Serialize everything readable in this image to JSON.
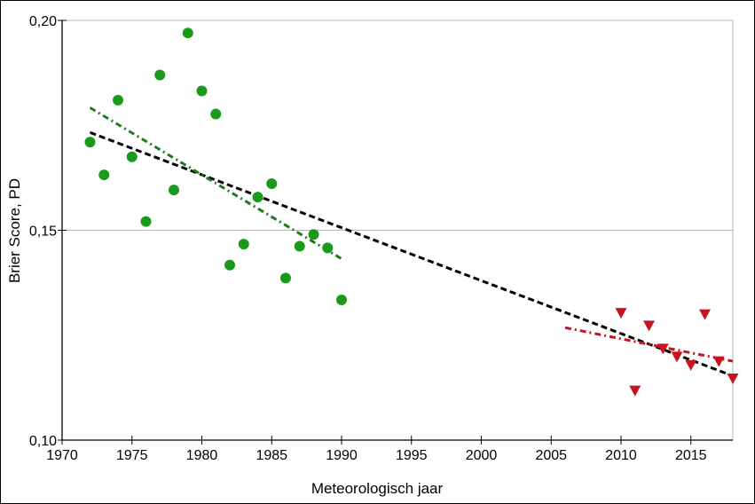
{
  "chart_data": {
    "type": "scatter",
    "title": "",
    "xlabel": "Meteorologisch jaar",
    "ylabel": "Brier Score, PD",
    "xlim": [
      1970,
      2018
    ],
    "ylim": [
      0.1,
      0.2
    ],
    "x_ticks": [
      {
        "value": 1970,
        "label": "1970"
      },
      {
        "value": 1975,
        "label": "1975"
      },
      {
        "value": 1980,
        "label": "1980"
      },
      {
        "value": 1985,
        "label": "1985"
      },
      {
        "value": 1990,
        "label": "1990"
      },
      {
        "value": 1995,
        "label": "1995"
      },
      {
        "value": 2000,
        "label": "2000"
      },
      {
        "value": 2005,
        "label": "2005"
      },
      {
        "value": 2010,
        "label": "2010"
      },
      {
        "value": 2015,
        "label": "2015"
      }
    ],
    "y_ticks": [
      {
        "value": 0.1,
        "label": "0,10"
      },
      {
        "value": 0.15,
        "label": "0,15"
      },
      {
        "value": 0.2,
        "label": "0,20"
      }
    ],
    "grid": "horizontal at 0.15 and 0.20",
    "legend": "none",
    "series": [
      {
        "marker": "circle",
        "color": "#1a9a1a",
        "x": [
          1972,
          1973,
          1974,
          1975,
          1976,
          1977,
          1978,
          1979,
          1980,
          1981,
          1982,
          1983,
          1984,
          1985,
          1986,
          1987,
          1988,
          1989,
          1990
        ],
        "y": [
          0.171,
          0.1632,
          0.181,
          0.1675,
          0.1521,
          0.187,
          0.1596,
          0.197,
          0.1832,
          0.1777,
          0.1417,
          0.1467,
          0.1579,
          0.1611,
          0.1386,
          0.1462,
          0.149,
          0.1458,
          0.1334
        ]
      },
      {
        "marker": "triangle-down",
        "color": "#c8141e",
        "x": [
          2010,
          2011,
          2012,
          2013,
          2014,
          2015,
          2016,
          2017,
          2018
        ],
        "y": [
          0.1303,
          0.1118,
          0.1273,
          0.1218,
          0.1199,
          0.1179,
          0.13,
          0.1188,
          0.1147
        ]
      }
    ],
    "trendlines": [
      {
        "style": "dashed",
        "color": "#000000",
        "x": [
          1972,
          2018
        ],
        "y": [
          0.1733,
          0.1153
        ]
      },
      {
        "style": "dash-dot",
        "color": "#1f7a1f",
        "x": [
          1972,
          1990
        ],
        "y": [
          0.1792,
          0.1432
        ]
      },
      {
        "style": "dash-dot",
        "color": "#c8141e",
        "x": [
          2006,
          2018
        ],
        "y": [
          0.1268,
          0.1188
        ]
      }
    ]
  }
}
